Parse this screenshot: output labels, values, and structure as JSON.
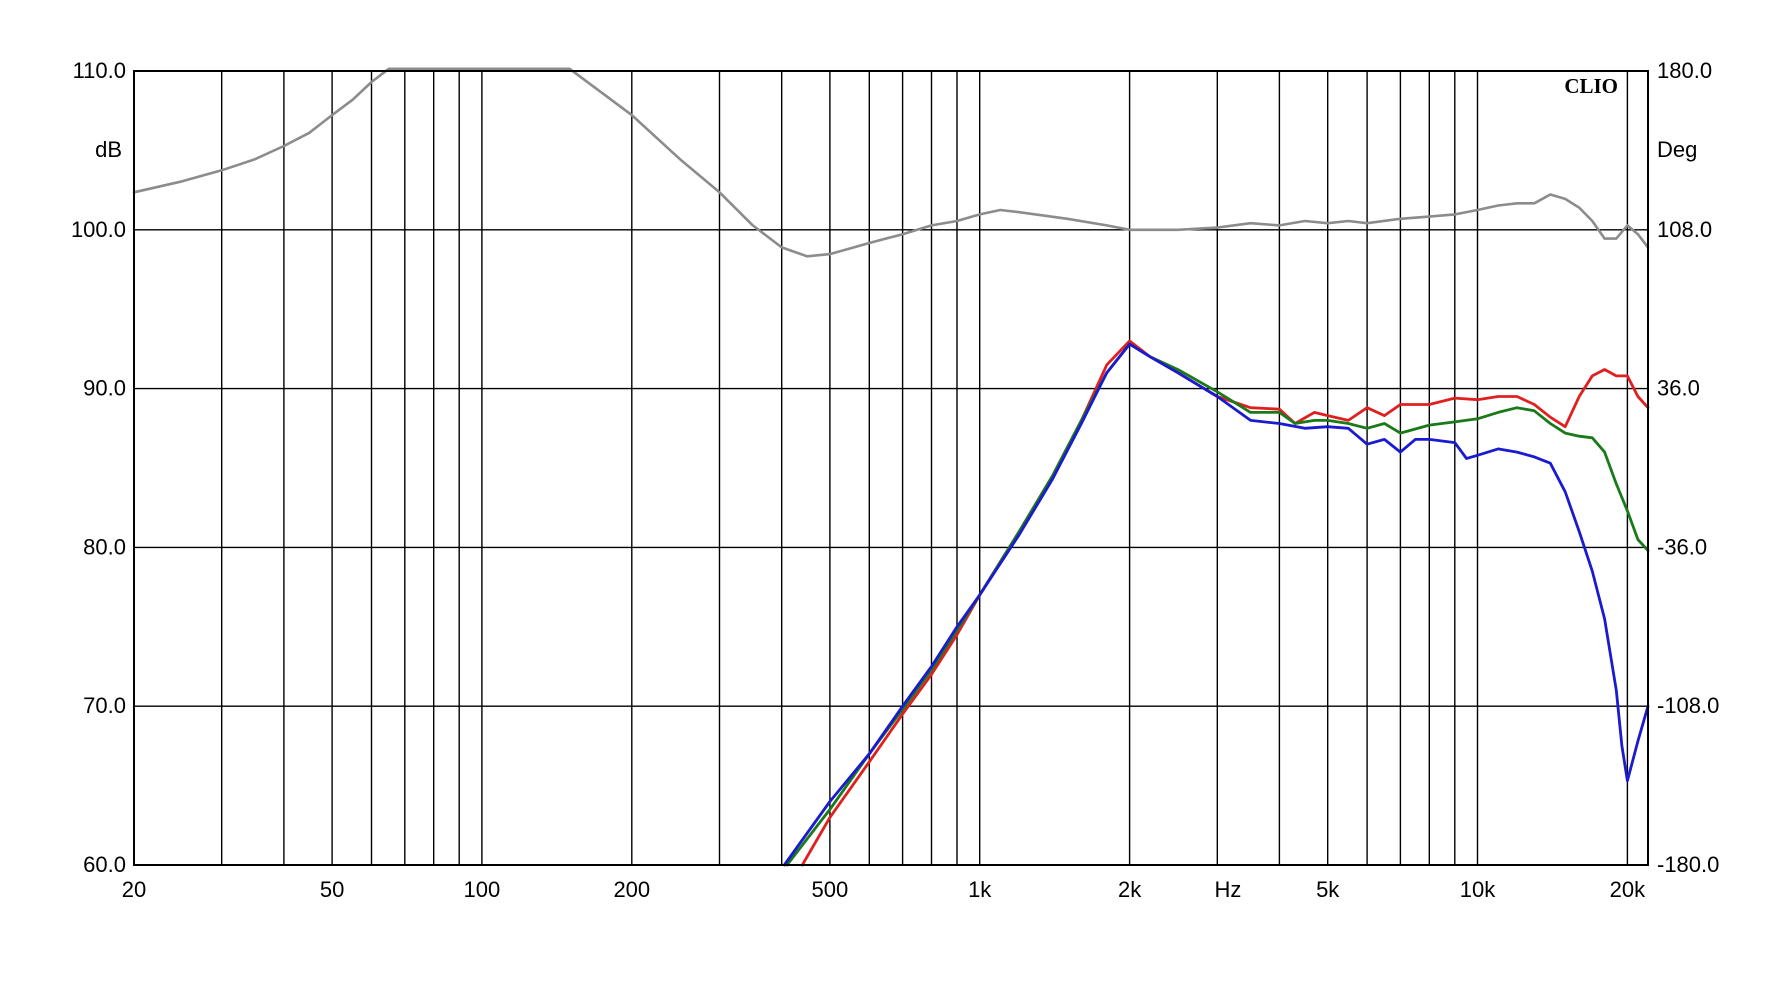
{
  "chart_data": {
    "type": "line",
    "brand": "CLIO",
    "x_axis": {
      "unit": "Hz",
      "scale": "log",
      "range": [
        20,
        22000
      ],
      "tick_labels": [
        {
          "value": 20,
          "label": "20"
        },
        {
          "value": 50,
          "label": "50"
        },
        {
          "value": 100,
          "label": "100"
        },
        {
          "value": 200,
          "label": "200"
        },
        {
          "value": 500,
          "label": "500"
        },
        {
          "value": 1000,
          "label": "1k"
        },
        {
          "value": 2000,
          "label": "2k"
        },
        {
          "value": 5000,
          "label": "5k"
        },
        {
          "value": 10000,
          "label": "10k"
        },
        {
          "value": 20000,
          "label": "20k"
        }
      ],
      "gridlines": [
        20,
        30,
        40,
        50,
        60,
        70,
        80,
        90,
        100,
        200,
        300,
        400,
        500,
        600,
        700,
        800,
        900,
        1000,
        2000,
        3000,
        4000,
        5000,
        6000,
        7000,
        8000,
        9000,
        10000,
        20000,
        22000
      ]
    },
    "y_left": {
      "unit": "dB",
      "range": [
        60,
        110
      ],
      "tick_labels": [
        "60.0",
        "70.0",
        "80.0",
        "90.0",
        "100.0",
        "110.0"
      ],
      "ticks": [
        60,
        70,
        80,
        90,
        100,
        110
      ]
    },
    "y_right": {
      "unit": "Deg",
      "range": [
        -180,
        180
      ],
      "tick_labels": [
        "-180.0",
        "-108.0",
        "-36.0",
        "36.0",
        "108.0",
        "180.0"
      ],
      "ticks": [
        -180,
        -108,
        -36,
        36,
        108,
        180
      ]
    },
    "grid": true,
    "series": [
      {
        "id": "phase",
        "axis": "right",
        "color": "#8c8c8c",
        "points": [
          [
            20,
            125
          ],
          [
            25,
            130
          ],
          [
            30,
            135
          ],
          [
            35,
            140
          ],
          [
            40,
            146
          ],
          [
            45,
            152
          ],
          [
            50,
            160
          ],
          [
            55,
            167
          ],
          [
            60,
            175
          ],
          [
            65,
            181
          ],
          [
            150,
            181
          ],
          [
            200,
            160
          ],
          [
            250,
            140
          ],
          [
            300,
            125
          ],
          [
            350,
            110
          ],
          [
            400,
            100
          ],
          [
            450,
            96
          ],
          [
            500,
            97
          ],
          [
            600,
            102
          ],
          [
            700,
            106
          ],
          [
            800,
            110
          ],
          [
            900,
            112
          ],
          [
            1000,
            115
          ],
          [
            1100,
            117
          ],
          [
            1200,
            116
          ],
          [
            1500,
            113
          ],
          [
            1800,
            110
          ],
          [
            2000,
            108
          ],
          [
            2500,
            108
          ],
          [
            3000,
            109
          ],
          [
            3500,
            111
          ],
          [
            4000,
            110
          ],
          [
            4500,
            112
          ],
          [
            5000,
            111
          ],
          [
            5500,
            112
          ],
          [
            6000,
            111
          ],
          [
            7000,
            113
          ],
          [
            8000,
            114
          ],
          [
            9000,
            115
          ],
          [
            10000,
            117
          ],
          [
            11000,
            119
          ],
          [
            12000,
            120
          ],
          [
            13000,
            120
          ],
          [
            14000,
            124
          ],
          [
            15000,
            122
          ],
          [
            16000,
            118
          ],
          [
            17000,
            112
          ],
          [
            18000,
            104
          ],
          [
            19000,
            104
          ],
          [
            20000,
            110
          ],
          [
            21000,
            106
          ],
          [
            22000,
            100
          ]
        ]
      },
      {
        "id": "red",
        "axis": "left",
        "color": "#e02020",
        "points": [
          [
            440,
            60
          ],
          [
            500,
            63
          ],
          [
            600,
            66.5
          ],
          [
            700,
            69.5
          ],
          [
            800,
            72
          ],
          [
            900,
            74.5
          ],
          [
            1000,
            77
          ],
          [
            1200,
            81
          ],
          [
            1400,
            84.5
          ],
          [
            1600,
            88
          ],
          [
            1800,
            91.5
          ],
          [
            2000,
            93
          ],
          [
            2200,
            92
          ],
          [
            2500,
            91
          ],
          [
            3000,
            89.5
          ],
          [
            3500,
            88.8
          ],
          [
            4000,
            88.7
          ],
          [
            4300,
            87.8
          ],
          [
            4700,
            88.5
          ],
          [
            5000,
            88.3
          ],
          [
            5500,
            88
          ],
          [
            6000,
            88.8
          ],
          [
            6500,
            88.3
          ],
          [
            7000,
            89
          ],
          [
            8000,
            89
          ],
          [
            9000,
            89.4
          ],
          [
            10000,
            89.3
          ],
          [
            11000,
            89.5
          ],
          [
            12000,
            89.5
          ],
          [
            13000,
            89
          ],
          [
            14000,
            88.2
          ],
          [
            15000,
            87.6
          ],
          [
            16000,
            89.5
          ],
          [
            17000,
            90.8
          ],
          [
            18000,
            91.2
          ],
          [
            19000,
            90.8
          ],
          [
            20000,
            90.8
          ],
          [
            21000,
            89.5
          ],
          [
            22000,
            88.8
          ]
        ]
      },
      {
        "id": "green",
        "axis": "left",
        "color": "#1a7a1a",
        "points": [
          [
            410,
            60
          ],
          [
            500,
            63.5
          ],
          [
            600,
            67
          ],
          [
            700,
            69.8
          ],
          [
            800,
            72.3
          ],
          [
            900,
            74.8
          ],
          [
            1000,
            77
          ],
          [
            1200,
            81
          ],
          [
            1400,
            84.5
          ],
          [
            1600,
            88
          ],
          [
            1800,
            91
          ],
          [
            2000,
            92.8
          ],
          [
            2200,
            92
          ],
          [
            2500,
            91.2
          ],
          [
            3000,
            89.8
          ],
          [
            3500,
            88.5
          ],
          [
            4000,
            88.5
          ],
          [
            4300,
            87.8
          ],
          [
            4700,
            88
          ],
          [
            5000,
            88
          ],
          [
            5500,
            87.8
          ],
          [
            6000,
            87.5
          ],
          [
            6500,
            87.8
          ],
          [
            7000,
            87.2
          ],
          [
            8000,
            87.7
          ],
          [
            9000,
            87.9
          ],
          [
            10000,
            88.1
          ],
          [
            11000,
            88.5
          ],
          [
            12000,
            88.8
          ],
          [
            13000,
            88.6
          ],
          [
            14000,
            87.8
          ],
          [
            15000,
            87.2
          ],
          [
            16000,
            87
          ],
          [
            17000,
            86.9
          ],
          [
            18000,
            86
          ],
          [
            19000,
            84
          ],
          [
            20000,
            82.3
          ],
          [
            21000,
            80.5
          ],
          [
            22000,
            79.8
          ]
        ]
      },
      {
        "id": "blue",
        "axis": "left",
        "color": "#1a1ad0",
        "points": [
          [
            405,
            60
          ],
          [
            500,
            64
          ],
          [
            600,
            67
          ],
          [
            700,
            70
          ],
          [
            800,
            72.5
          ],
          [
            900,
            75
          ],
          [
            1000,
            77
          ],
          [
            1200,
            80.8
          ],
          [
            1400,
            84.3
          ],
          [
            1600,
            87.8
          ],
          [
            1800,
            91
          ],
          [
            2000,
            92.8
          ],
          [
            2200,
            92
          ],
          [
            2500,
            91
          ],
          [
            3000,
            89.5
          ],
          [
            3500,
            88
          ],
          [
            4000,
            87.8
          ],
          [
            4500,
            87.5
          ],
          [
            5000,
            87.6
          ],
          [
            5500,
            87.5
          ],
          [
            6000,
            86.5
          ],
          [
            6500,
            86.8
          ],
          [
            7000,
            86
          ],
          [
            7500,
            86.8
          ],
          [
            8000,
            86.8
          ],
          [
            9000,
            86.6
          ],
          [
            9500,
            85.6
          ],
          [
            10000,
            85.8
          ],
          [
            11000,
            86.2
          ],
          [
            12000,
            86
          ],
          [
            13000,
            85.7
          ],
          [
            14000,
            85.3
          ],
          [
            15000,
            83.5
          ],
          [
            16000,
            81
          ],
          [
            17000,
            78.5
          ],
          [
            18000,
            75.5
          ],
          [
            19000,
            71
          ],
          [
            19500,
            67.5
          ],
          [
            20000,
            65.3
          ],
          [
            21000,
            67.8
          ],
          [
            22000,
            70
          ]
        ]
      }
    ]
  }
}
